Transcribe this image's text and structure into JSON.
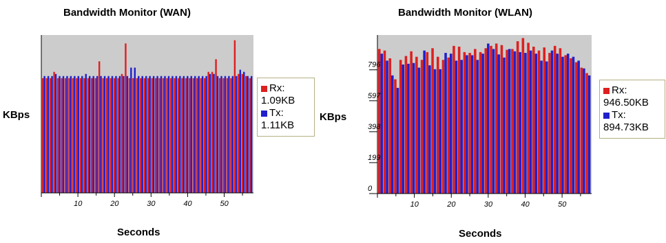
{
  "charts": [
    {
      "title": "Bandwidth Monitor (WAN)",
      "ylabel": "KBps",
      "xlabel": "Seconds",
      "legend": {
        "rx_label": "Rx:",
        "rx_value": "1.09KB",
        "tx_label": "Tx:",
        "tx_value": "1.11KB"
      }
    },
    {
      "title": "Bandwidth Monitor (WLAN)",
      "ylabel": "KBps",
      "xlabel": "Seconds",
      "legend": {
        "rx_label": "Rx:",
        "rx_value": "946.50KB",
        "tx_label": "Tx:",
        "tx_value": "894.73KB"
      }
    }
  ],
  "colors": {
    "rx": "#dd2020",
    "tx": "#2020cc",
    "plot_bg": "#cccccc",
    "legend_border": "#b4b082"
  },
  "chart_data": [
    {
      "type": "bar",
      "title": "Bandwidth Monitor (WAN)",
      "xlabel": "Seconds",
      "ylabel": "KBps",
      "x_tick_labels": [
        "10",
        "20",
        "30",
        "40",
        "50"
      ],
      "x_ticks": [
        10,
        20,
        30,
        40,
        50
      ],
      "xlim": [
        0,
        58
      ],
      "ylim": [
        0,
        1.5
      ],
      "grid": false,
      "legend_position": "right",
      "series": [
        {
          "name": "Rx",
          "values": [
            1.09,
            1.09,
            1.09,
            1.15,
            1.09,
            1.09,
            1.09,
            1.09,
            1.09,
            1.09,
            1.09,
            1.09,
            1.09,
            1.09,
            1.09,
            1.25,
            1.09,
            1.09,
            1.09,
            1.09,
            1.09,
            1.13,
            1.42,
            1.09,
            1.09,
            1.09,
            1.09,
            1.09,
            1.09,
            1.09,
            1.09,
            1.09,
            1.09,
            1.09,
            1.09,
            1.09,
            1.09,
            1.09,
            1.09,
            1.09,
            1.09,
            1.09,
            1.09,
            1.09,
            1.15,
            1.15,
            1.27,
            1.09,
            1.09,
            1.09,
            1.09,
            1.45,
            1.13,
            1.13,
            1.11,
            1.09
          ]
        },
        {
          "name": "Tx",
          "values": [
            1.11,
            1.11,
            1.11,
            1.13,
            1.11,
            1.11,
            1.11,
            1.11,
            1.11,
            1.11,
            1.11,
            1.13,
            1.11,
            1.11,
            1.11,
            1.11,
            1.11,
            1.11,
            1.11,
            1.11,
            1.11,
            1.11,
            1.11,
            1.19,
            1.19,
            1.11,
            1.11,
            1.11,
            1.11,
            1.11,
            1.11,
            1.11,
            1.11,
            1.11,
            1.11,
            1.11,
            1.11,
            1.11,
            1.11,
            1.11,
            1.11,
            1.11,
            1.11,
            1.11,
            1.13,
            1.13,
            1.11,
            1.11,
            1.11,
            1.11,
            1.11,
            1.11,
            1.17,
            1.15,
            1.11,
            1.11
          ]
        }
      ]
    },
    {
      "type": "bar",
      "title": "Bandwidth Monitor (WLAN)",
      "xlabel": "Seconds",
      "ylabel": "KBps",
      "y_tick_labels": [
        "0",
        "199",
        "398",
        "597",
        "796"
      ],
      "y_ticks": [
        0,
        199,
        398,
        597,
        796
      ],
      "x_tick_labels": [
        "10",
        "20",
        "30",
        "40",
        "50"
      ],
      "x_ticks": [
        10,
        20,
        30,
        40,
        50
      ],
      "xlim": [
        0,
        58
      ],
      "ylim": [
        0,
        1020
      ],
      "grid": false,
      "legend_position": "right",
      "series": [
        {
          "name": "Rx",
          "values": [
            930,
            920,
            870,
            735,
            860,
            885,
            915,
            880,
            860,
            910,
            935,
            880,
            860,
            875,
            950,
            945,
            910,
            905,
            930,
            910,
            935,
            950,
            965,
            955,
            925,
            930,
            980,
            1000,
            970,
            945,
            920,
            940,
            905,
            950,
            935,
            890,
            870,
            845,
            810,
            775
          ]
        },
        {
          "name": "Tx",
          "values": [
            900,
            855,
            760,
            680,
            830,
            835,
            840,
            810,
            920,
            825,
            800,
            800,
            905,
            900,
            855,
            860,
            890,
            890,
            860,
            900,
            965,
            930,
            895,
            875,
            930,
            915,
            910,
            905,
            920,
            900,
            855,
            850,
            920,
            900,
            880,
            900,
            880,
            855,
            805,
            760
          ]
        }
      ]
    }
  ]
}
